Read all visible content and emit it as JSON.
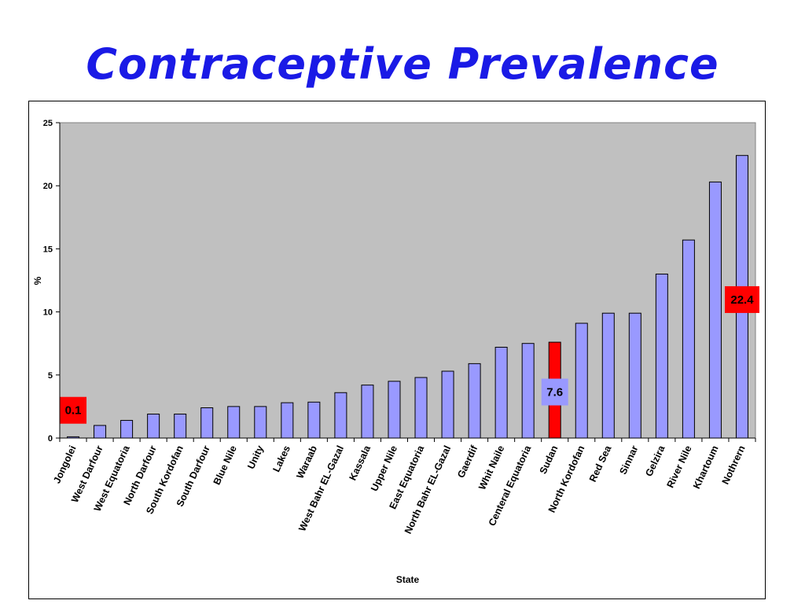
{
  "slide": {
    "title": "Contraceptive Prevalence"
  },
  "chart_data": {
    "type": "bar",
    "title": "",
    "xlabel": "State",
    "ylabel": "%",
    "ylim": [
      0,
      25
    ],
    "yticks": [
      0,
      5,
      10,
      15,
      20,
      25
    ],
    "grid": false,
    "plot_background": "#c0c0c0",
    "bar_color": "#9999ff",
    "highlight_color": "#ff0000",
    "categories": [
      "Jongolei",
      "West Darfour",
      "West Equatoria",
      "North Darfour",
      "South Kordofan",
      "South Darfour",
      "Blue Nile",
      "Unity",
      "Lakes",
      "Waraab",
      "West Bahr EL-Gazal",
      "Kassala",
      "Upper Nile",
      "East Equatoria",
      "North Bahr EL-Gazal",
      "Gaerdif",
      "Whit Naile",
      "Centeral Equatoria",
      "Sudan",
      "North Kordofan",
      "Red Sea",
      "Sinnar",
      "Gelzira",
      "River Nile",
      "Khartoum",
      "Nothrern"
    ],
    "values": [
      0.1,
      1.0,
      1.4,
      1.9,
      1.9,
      2.4,
      2.5,
      2.5,
      2.8,
      2.85,
      3.6,
      4.2,
      4.5,
      4.8,
      5.3,
      5.9,
      7.2,
      7.5,
      7.6,
      9.1,
      9.9,
      9.9,
      13.0,
      15.7,
      20.3,
      22.4
    ],
    "highlight_index": 18,
    "callouts": [
      {
        "category": "Jongolei",
        "text": "0.1",
        "color": "#ff0000"
      },
      {
        "category": "Sudan",
        "text": "7.6",
        "color": "#9999ff"
      },
      {
        "category": "Nothrern",
        "text": "22.4",
        "color": "#ff0000"
      }
    ]
  }
}
